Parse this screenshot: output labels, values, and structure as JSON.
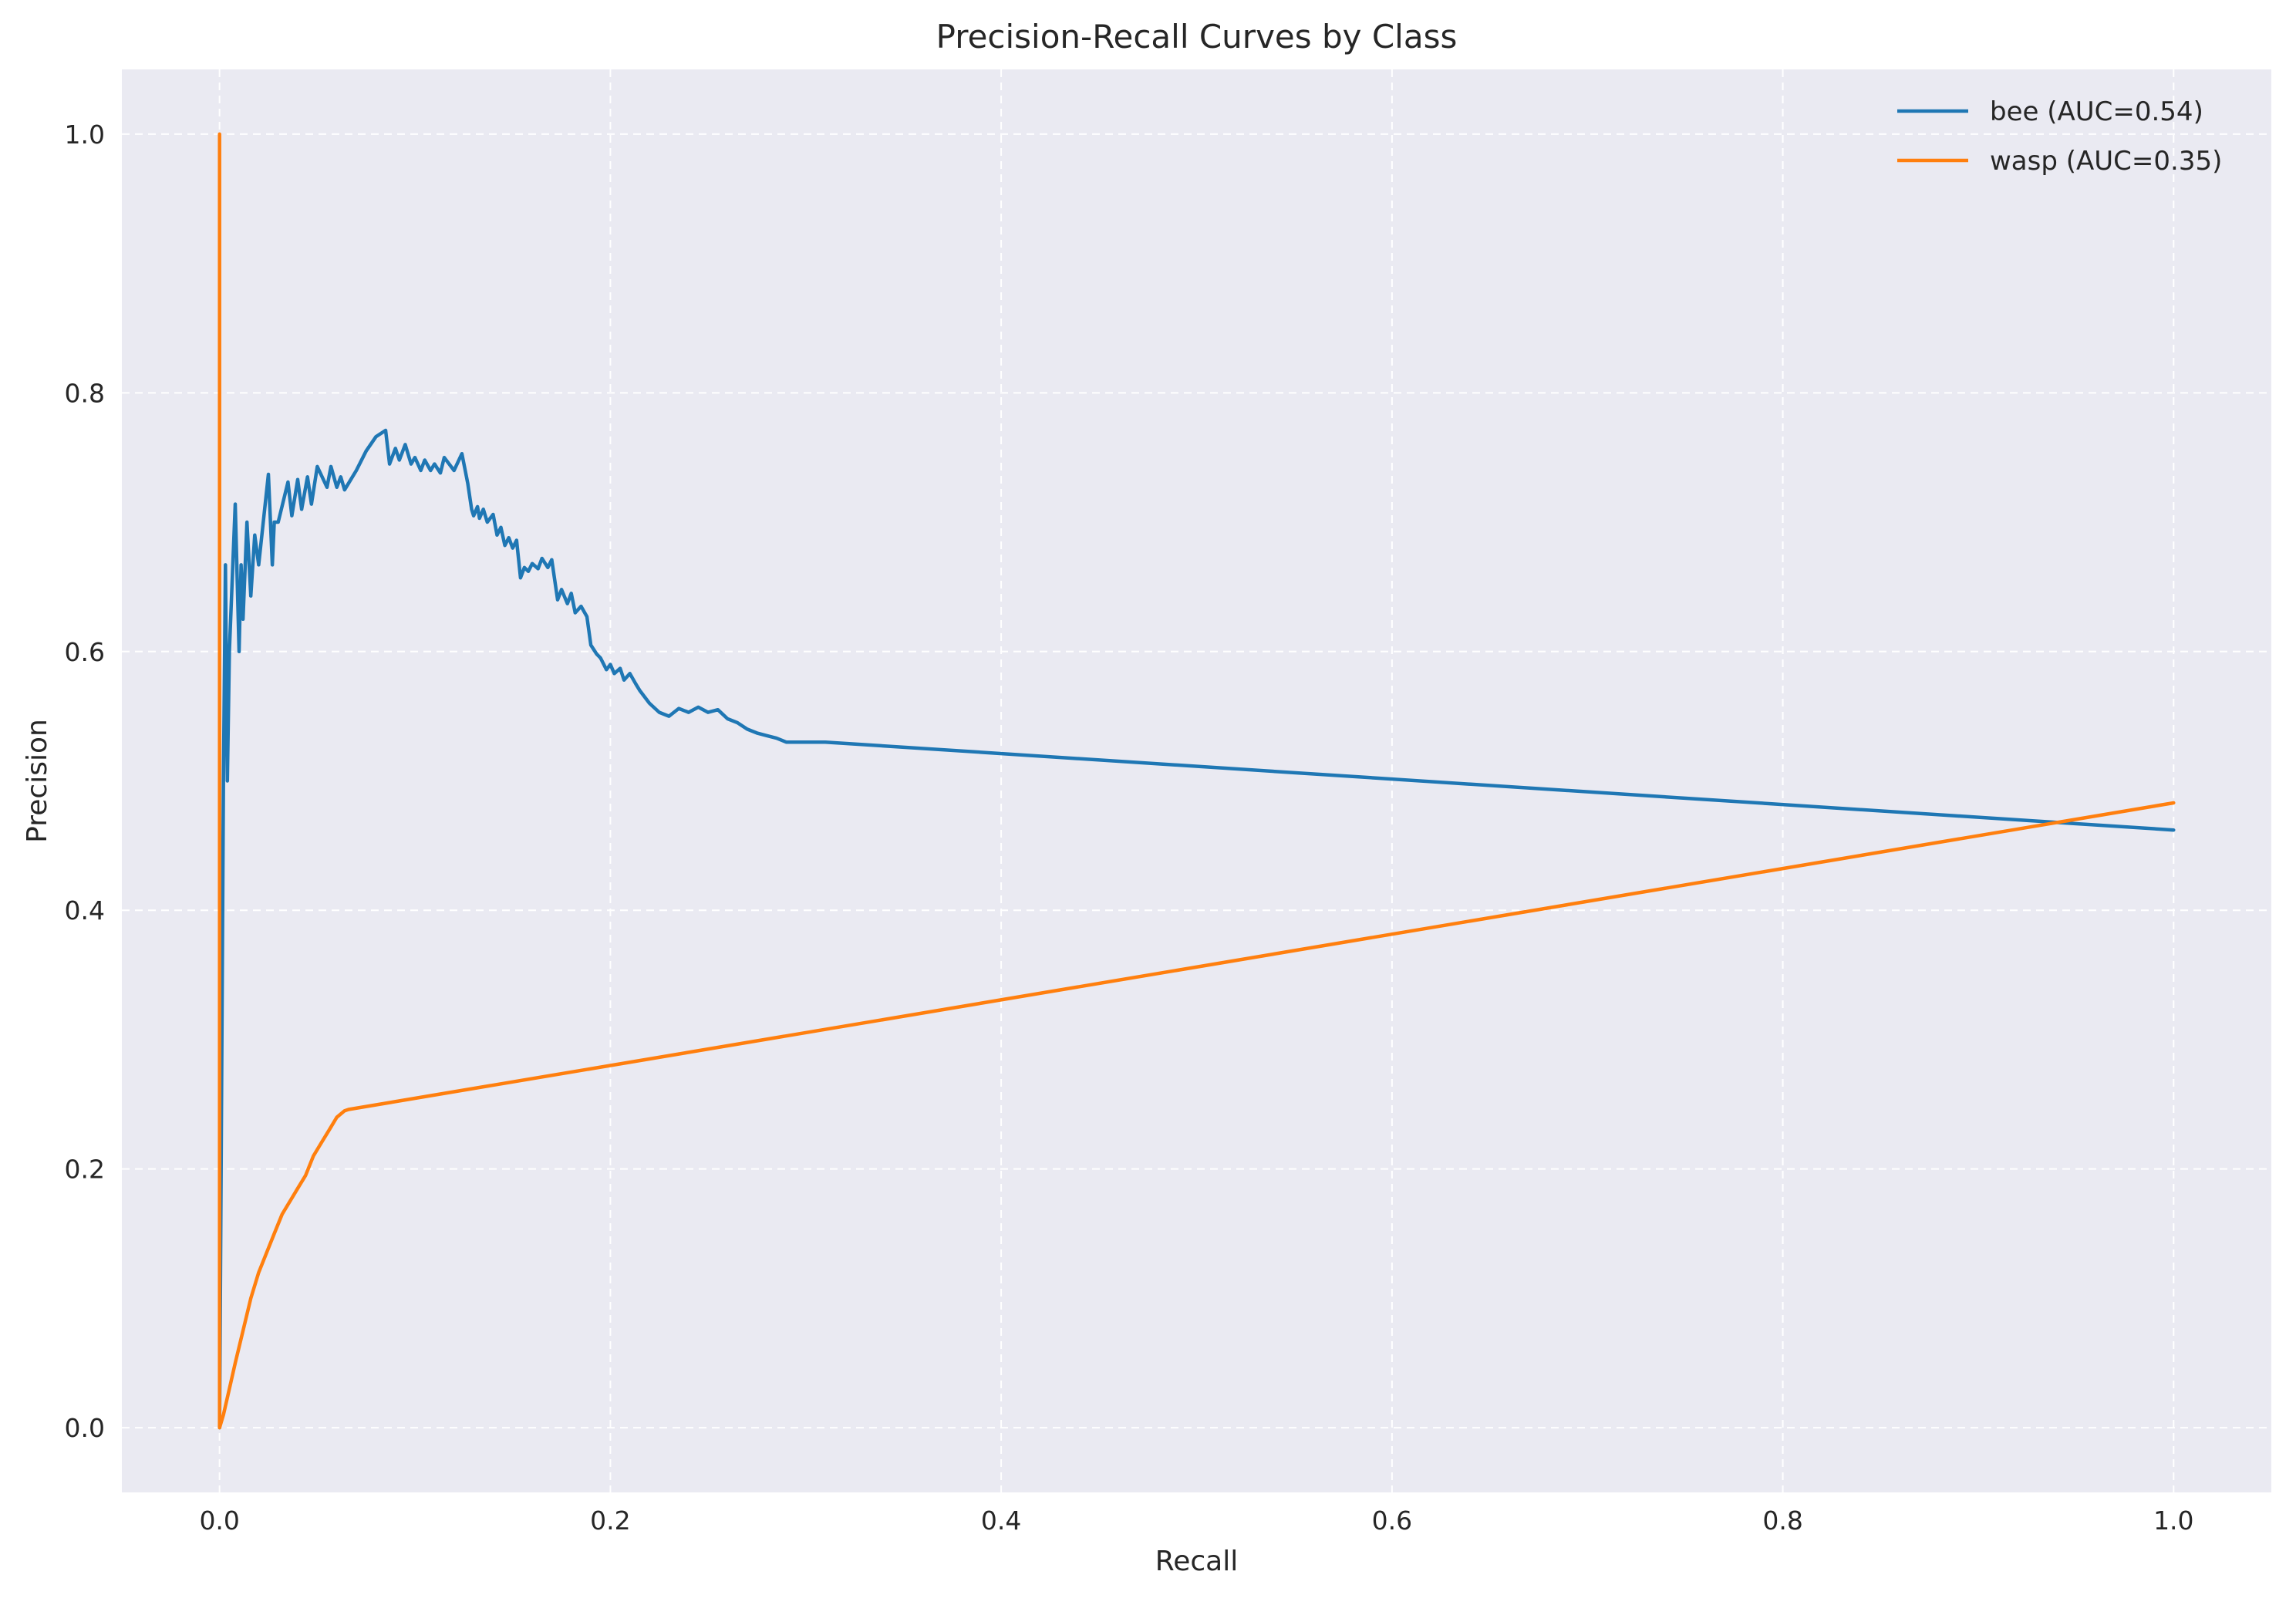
{
  "chart_data": {
    "type": "line",
    "title": "Precision-Recall Curves by Class",
    "xlabel": "Recall",
    "ylabel": "Precision",
    "xlim": [
      -0.05,
      1.05
    ],
    "ylim": [
      -0.05,
      1.05
    ],
    "grid": true,
    "legend_position": "top-right",
    "xticks": [
      0.0,
      0.2,
      0.4,
      0.6,
      0.8,
      1.0
    ],
    "yticks": [
      0.0,
      0.2,
      0.4,
      0.6,
      0.8,
      1.0
    ],
    "xtick_labels": [
      "0.0",
      "0.2",
      "0.4",
      "0.6",
      "0.8",
      "1.0"
    ],
    "ytick_labels": [
      "0.0",
      "0.2",
      "0.4",
      "0.6",
      "0.8",
      "1.0"
    ],
    "background_color": "#eaeaf2",
    "series": [
      {
        "name": "bee (AUC=0.54)",
        "color": "#1f77b4",
        "x": [
          0.0,
          0.002,
          0.003,
          0.004,
          0.005,
          0.008,
          0.01,
          0.011,
          0.012,
          0.014,
          0.016,
          0.018,
          0.02,
          0.025,
          0.027,
          0.028,
          0.03,
          0.035,
          0.037,
          0.04,
          0.042,
          0.045,
          0.047,
          0.05,
          0.055,
          0.057,
          0.06,
          0.062,
          0.064,
          0.066,
          0.07,
          0.075,
          0.08,
          0.085,
          0.087,
          0.09,
          0.092,
          0.095,
          0.098,
          0.1,
          0.103,
          0.105,
          0.108,
          0.11,
          0.113,
          0.115,
          0.12,
          0.124,
          0.127,
          0.129,
          0.13,
          0.132,
          0.133,
          0.135,
          0.137,
          0.14,
          0.142,
          0.144,
          0.146,
          0.148,
          0.15,
          0.152,
          0.154,
          0.156,
          0.158,
          0.16,
          0.163,
          0.165,
          0.168,
          0.17,
          0.173,
          0.175,
          0.178,
          0.18,
          0.182,
          0.185,
          0.188,
          0.19,
          0.193,
          0.195,
          0.198,
          0.2,
          0.202,
          0.205,
          0.207,
          0.21,
          0.213,
          0.215,
          0.22,
          0.225,
          0.23,
          0.235,
          0.24,
          0.245,
          0.25,
          0.255,
          0.26,
          0.265,
          0.27,
          0.275,
          0.28,
          0.285,
          0.29,
          0.295,
          0.3,
          0.305,
          0.31,
          1.0
        ],
        "y": [
          0.0,
          0.5,
          0.667,
          0.5,
          0.6,
          0.714,
          0.6,
          0.667,
          0.625,
          0.7,
          0.643,
          0.69,
          0.667,
          0.737,
          0.667,
          0.7,
          0.7,
          0.731,
          0.705,
          0.733,
          0.71,
          0.735,
          0.714,
          0.743,
          0.727,
          0.743,
          0.727,
          0.735,
          0.725,
          0.73,
          0.74,
          0.755,
          0.766,
          0.771,
          0.745,
          0.757,
          0.748,
          0.76,
          0.745,
          0.75,
          0.74,
          0.748,
          0.74,
          0.745,
          0.738,
          0.75,
          0.74,
          0.753,
          0.73,
          0.71,
          0.705,
          0.712,
          0.703,
          0.71,
          0.7,
          0.706,
          0.69,
          0.696,
          0.682,
          0.688,
          0.68,
          0.686,
          0.657,
          0.665,
          0.662,
          0.668,
          0.664,
          0.672,
          0.665,
          0.671,
          0.64,
          0.648,
          0.637,
          0.645,
          0.63,
          0.635,
          0.627,
          0.605,
          0.598,
          0.595,
          0.586,
          0.59,
          0.583,
          0.587,
          0.578,
          0.583,
          0.575,
          0.57,
          0.56,
          0.553,
          0.55,
          0.556,
          0.553,
          0.557,
          0.553,
          0.555,
          0.548,
          0.545,
          0.54,
          0.537,
          0.535,
          0.533,
          0.53,
          0.53,
          0.53,
          0.53,
          0.53,
          0.462
        ]
      },
      {
        "name": "wasp (AUC=0.35)",
        "color": "#ff7f0e",
        "x": [
          0.0,
          0.0,
          0.0,
          0.002,
          0.005,
          0.008,
          0.012,
          0.016,
          0.02,
          0.024,
          0.028,
          0.032,
          0.036,
          0.04,
          0.044,
          0.048,
          0.052,
          0.056,
          0.06,
          0.064,
          0.066,
          1.0
        ],
        "y": [
          1.0,
          0.0,
          0.0,
          0.01,
          0.03,
          0.05,
          0.075,
          0.1,
          0.12,
          0.135,
          0.15,
          0.165,
          0.175,
          0.185,
          0.195,
          0.21,
          0.22,
          0.23,
          0.24,
          0.245,
          0.246,
          0.483
        ]
      }
    ]
  }
}
